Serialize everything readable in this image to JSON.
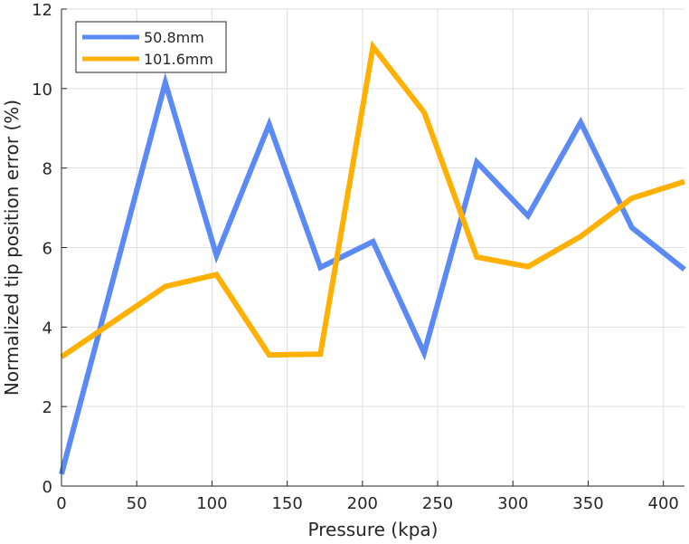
{
  "chart_data": {
    "type": "line",
    "title": "",
    "xlabel": "Pressure (kpa)",
    "ylabel": "Normalized tip position error (%)",
    "xlim": [
      0,
      414
    ],
    "ylim": [
      0,
      12
    ],
    "x_ticks": [
      0,
      50,
      100,
      150,
      200,
      250,
      300,
      350,
      400
    ],
    "y_ticks": [
      0,
      2,
      4,
      6,
      8,
      10,
      12
    ],
    "grid": true,
    "legend_position": "top-left",
    "series": [
      {
        "name": "50.8mm",
        "color": "#5b8af5",
        "x": [
          0,
          69,
          103,
          138,
          172,
          207,
          241,
          276,
          310,
          345,
          379,
          414
        ],
        "y": [
          0.3,
          10.15,
          5.8,
          9.1,
          5.5,
          6.15,
          3.35,
          8.15,
          6.8,
          9.15,
          6.5,
          5.45
        ]
      },
      {
        "name": "101.6mm",
        "color": "#ffb000",
        "x": [
          0,
          69,
          103,
          138,
          172,
          207,
          241,
          276,
          310,
          345,
          379,
          414
        ],
        "y": [
          3.25,
          5.02,
          5.32,
          3.3,
          3.32,
          11.05,
          9.4,
          5.76,
          5.52,
          6.28,
          7.24,
          7.66
        ]
      }
    ]
  }
}
